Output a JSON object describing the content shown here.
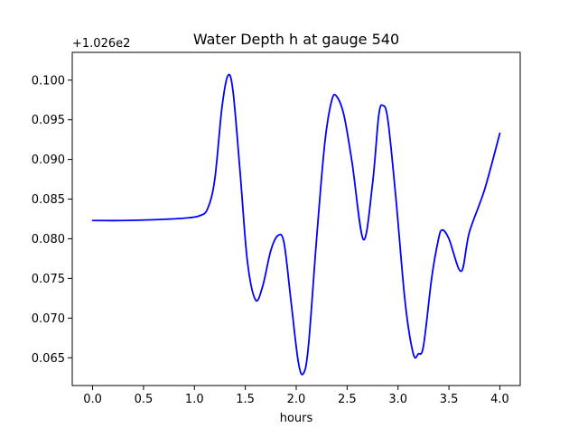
{
  "chart_data": {
    "type": "line",
    "title": "Water Depth h at gauge 540",
    "xlabel": "hours",
    "ylabel": "",
    "offset_label": "+1.026e2",
    "xlim": [
      -0.2,
      4.2
    ],
    "ylim": [
      0.0615,
      0.1035
    ],
    "xticks": [
      0.0,
      0.5,
      1.0,
      1.5,
      2.0,
      2.5,
      3.0,
      3.5,
      4.0
    ],
    "xtick_labels": [
      "0.0",
      "0.5",
      "1.0",
      "1.5",
      "2.0",
      "2.5",
      "3.0",
      "3.5",
      "4.0"
    ],
    "yticks": [
      0.065,
      0.07,
      0.075,
      0.08,
      0.085,
      0.09,
      0.095,
      0.1
    ],
    "ytick_labels": [
      "0.065",
      "0.070",
      "0.075",
      "0.080",
      "0.085",
      "0.090",
      "0.095",
      "0.100"
    ],
    "grid": false,
    "series": [
      {
        "color": "#0000ff",
        "x": [
          0.0,
          0.3,
          0.6,
          0.9,
          1.05,
          1.13,
          1.2,
          1.27,
          1.33,
          1.38,
          1.45,
          1.52,
          1.6,
          1.67,
          1.75,
          1.82,
          1.88,
          1.95,
          2.02,
          2.07,
          2.12,
          2.2,
          2.28,
          2.35,
          2.4,
          2.47,
          2.55,
          2.66,
          2.75,
          2.81,
          2.85,
          2.9,
          2.98,
          3.07,
          3.15,
          3.2,
          3.25,
          3.33,
          3.39,
          3.43,
          3.5,
          3.62,
          3.7,
          3.85,
          4.0
        ],
        "y": [
          0.0823,
          0.0823,
          0.0824,
          0.0826,
          0.0829,
          0.0838,
          0.0875,
          0.0965,
          0.1006,
          0.0985,
          0.0882,
          0.0772,
          0.0723,
          0.074,
          0.0785,
          0.0804,
          0.0795,
          0.072,
          0.0645,
          0.063,
          0.0665,
          0.08,
          0.092,
          0.0975,
          0.0979,
          0.0955,
          0.0895,
          0.0799,
          0.087,
          0.0955,
          0.0968,
          0.095,
          0.085,
          0.072,
          0.0655,
          0.0655,
          0.0665,
          0.075,
          0.0795,
          0.0811,
          0.08,
          0.0759,
          0.0808,
          0.0862,
          0.0933
        ]
      }
    ]
  }
}
